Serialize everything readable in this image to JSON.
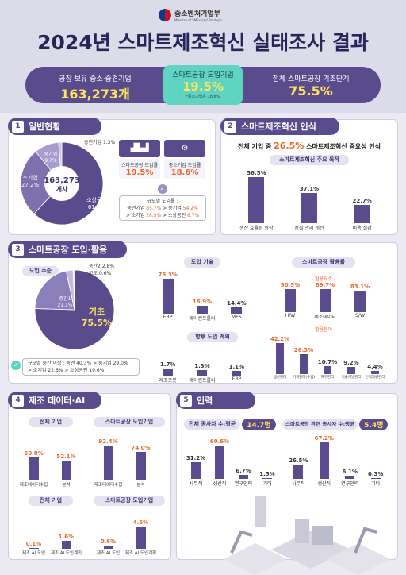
{
  "header": {
    "ministry": "중소벤처기업부",
    "ministry_en": "Ministry of SMEs and Startups",
    "title": "2024년 스마트제조혁신 실태조사 결과"
  },
  "kpis": [
    {
      "label": "공장 보유 중소·중견기업",
      "value": "163,273개"
    },
    {
      "label": "스마트공장 도입기업",
      "value": "19.5%",
      "note": "*중소기업은 18.6%"
    },
    {
      "label": "전체 스마트공장 기초단계",
      "value": "75.5%"
    }
  ],
  "sections": {
    "s1": {
      "num": "1",
      "title": "일반현황"
    },
    "s2": {
      "num": "2",
      "title": "스마트제조혁신 인식"
    },
    "s3": {
      "num": "3",
      "title": "스마트공장 도입·활용"
    },
    "s4": {
      "num": "4",
      "title": "제조 데이터·AI"
    },
    "s5": {
      "num": "5",
      "title": "인력"
    }
  },
  "s1": {
    "center_line1": "163,273",
    "center_line2": "개사",
    "box1_label": "스마트공장 도입률",
    "box1_value": "19.5%",
    "box2_label": "중소기업 도입률",
    "box2_value": "18.6%",
    "desc_title": "규모별 도입률 :",
    "desc_line1a": "중견기업 ",
    "desc_line1b": "85.7%",
    "desc_line1c": " > 중기업 ",
    "desc_line1d": "54.2%",
    "desc_line2a": "> 소기업 ",
    "desc_line2b": "28.5%",
    "desc_line2c": " > 소상공인 ",
    "desc_line2d": "8.7%"
  },
  "s2": {
    "headline_a": "전체 기업 중 ",
    "headline_b": "26.5%",
    "headline_c": " 스마트제조혁신 중요성 인식",
    "subtitle": "스마트제조혁신 주요 목적"
  },
  "s3": {
    "pie_label": "도입 수준",
    "pie_big": "기초",
    "pie_big_value": "75.5%",
    "desc_a": "규모별 중간 이상 : 중견 40.3% > 중기업 29.0%",
    "desc_b": "> 소기업 22.6% > 소상공인 19.6%",
    "tech_title": "도입 기술",
    "plan_title": "향후 도입 계획",
    "use_title": "스마트공장 활용률",
    "use_sub1": "- 활용요소 -",
    "use_sub2": "- 활용분야 -"
  },
  "s4": {
    "t1": "전체 기업",
    "t2": "스마트공장 도입기업",
    "t3": "전체 기업",
    "t4": "스마트공장 도입기업"
  },
  "s5": {
    "p1_a": "전체 종사자 수:평균",
    "p1_b": "14.7명",
    "p2_a": "스마트공장 관련 종사자 수:평균",
    "p2_b": "5.4명"
  },
  "chart_data": [
    {
      "type": "pie",
      "title": "일반현황",
      "categories": [
        "소상공인",
        "소기업",
        "중기업",
        "중견기업"
      ],
      "values": [
        61.8,
        27.2,
        9.7,
        1.3
      ],
      "colors": [
        "#5a4b8c",
        "#7d70ad",
        "#a79ccd",
        "#cfc8e5"
      ]
    },
    {
      "type": "bar",
      "title": "스마트제조혁신 주요 목적",
      "categories": [
        "생산 효율성 향상",
        "품질 관리 개선",
        "비용 절감"
      ],
      "values": [
        56.5,
        37.1,
        22.7
      ],
      "labels": [
        "56.5%",
        "37.1%",
        "22.7%"
      ]
    },
    {
      "type": "pie",
      "title": "도입 수준",
      "categories": [
        "기초",
        "중간1",
        "중간2",
        "고도"
      ],
      "values": [
        75.5,
        21.1,
        2.8,
        0.6
      ],
      "colors": [
        "#5a4b8c",
        "#8a7fba",
        "#c2bbdc",
        "#e3dfef"
      ]
    },
    {
      "type": "bar",
      "title": "도입 기술",
      "categories": [
        "ERP",
        "제어컨트롤러",
        "MES"
      ],
      "values": [
        76.3,
        16.9,
        14.4
      ],
      "labels": [
        "76.3%",
        "16.9%",
        "14.4%"
      ]
    },
    {
      "type": "bar",
      "title": "향후 도입 계획",
      "categories": [
        "제조로봇",
        "제어컨트롤러",
        "ERP"
      ],
      "values": [
        1.7,
        1.3,
        1.1
      ],
      "labels": [
        "1.7%",
        "1.3%",
        "1.1%"
      ]
    },
    {
      "type": "bar",
      "title": "활용요소",
      "categories": [
        "H/W",
        "제조데이터",
        "S/W"
      ],
      "values": [
        90.5,
        89.7,
        83.1
      ],
      "labels": [
        "90.5%",
        "89.7%",
        "83.1%"
      ]
    },
    {
      "type": "bar",
      "title": "활용분야",
      "categories": [
        "생산관리",
        "기획관리(수입)",
        "재무관리",
        "기술개발관리",
        "인적자원관리"
      ],
      "values": [
        42.2,
        26.3,
        10.7,
        9.2,
        4.4
      ],
      "labels": [
        "42.2%",
        "26.3%",
        "10.7%",
        "9.2%",
        "4.4%"
      ]
    },
    {
      "type": "bar",
      "title": "전체 기업",
      "categories": [
        "제조데이터수집",
        "분석"
      ],
      "values": [
        60.8,
        52.1
      ],
      "labels": [
        "60.8%",
        "52.1%"
      ]
    },
    {
      "type": "bar",
      "title": "스마트공장 도입기업",
      "categories": [
        "제조데이터수집",
        "분석"
      ],
      "values": [
        92.4,
        74.0
      ],
      "labels": [
        "92.4%",
        "74.0%"
      ]
    },
    {
      "type": "bar",
      "title": "전체 기업",
      "categories": [
        "제조 AI 도입",
        "제조 AI 도입계획"
      ],
      "values": [
        0.1,
        1.6
      ],
      "labels": [
        "0.1%",
        "1.6%"
      ]
    },
    {
      "type": "bar",
      "title": "스마트공장 도입기업",
      "categories": [
        "제조 AI 도입",
        "제조 AI 도입계획"
      ],
      "values": [
        0.6,
        4.6
      ],
      "labels": [
        "0.6%",
        "4.6%"
      ]
    },
    {
      "type": "bar",
      "title": "전체 종사자 수",
      "categories": [
        "사무직",
        "생산직",
        "연구인력",
        "기타"
      ],
      "values": [
        31.2,
        60.6,
        6.7,
        1.5
      ],
      "labels": [
        "31.2%",
        "60.6%",
        "6.7%",
        "1.5%"
      ]
    },
    {
      "type": "bar",
      "title": "스마트공장 관련 종사자 수",
      "categories": [
        "사무직",
        "생산직",
        "연구인력",
        "기타"
      ],
      "values": [
        26.5,
        67.2,
        6.1,
        0.3
      ],
      "labels": [
        "26.5%",
        "67.2%",
        "6.1%",
        "0.3%"
      ]
    }
  ]
}
